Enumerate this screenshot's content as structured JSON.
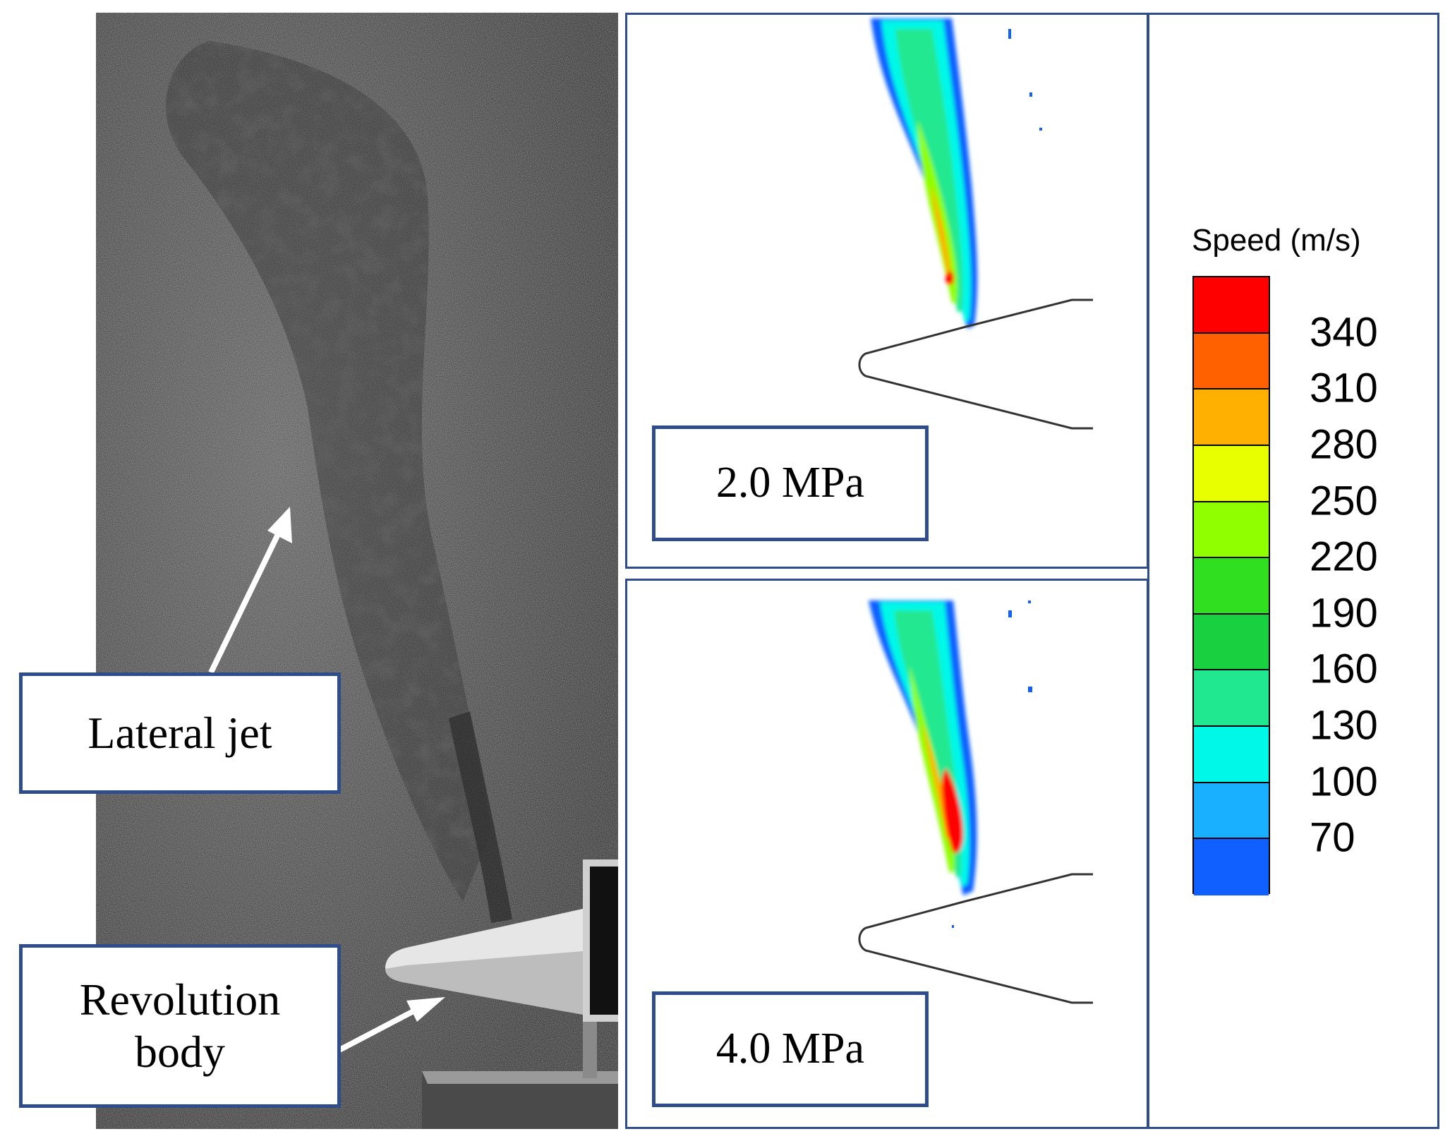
{
  "photo": {
    "label_lateral_jet": "Lateral jet",
    "label_revolution_body": "Revolution body"
  },
  "simulations": [
    {
      "pressure_label": "2.0 MPa"
    },
    {
      "pressure_label": "4.0 MPa"
    }
  ],
  "legend": {
    "title": "Speed (m/s)",
    "ticks": [
      "340",
      "310",
      "280",
      "250",
      "220",
      "190",
      "160",
      "130",
      "100",
      "70"
    ],
    "colors": [
      "#ff0000",
      "#ff6000",
      "#ffb000",
      "#e8ff00",
      "#90ff00",
      "#30e020",
      "#18d040",
      "#20e890",
      "#00f8e8",
      "#18b0ff",
      "#1060ff"
    ]
  },
  "colors": {
    "box_border": "#2f4d8a"
  }
}
